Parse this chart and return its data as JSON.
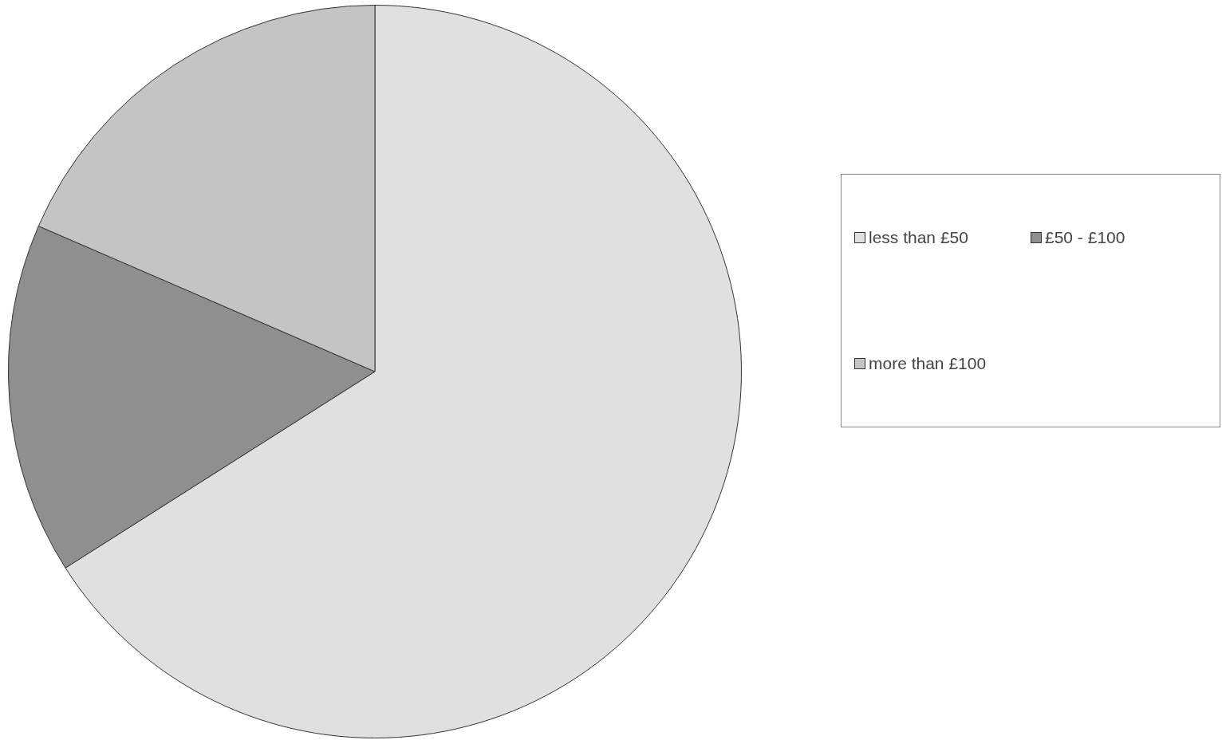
{
  "chart_data": {
    "type": "pie",
    "categories": [
      "less than £50",
      "£50 - £100",
      "more than £100"
    ],
    "values": [
      66,
      15.5,
      18.5
    ],
    "colors": [
      "#e0e0e0",
      "#8f8f8f",
      "#c4c4c4"
    ],
    "legend": "right"
  }
}
